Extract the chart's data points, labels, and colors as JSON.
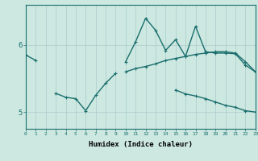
{
  "xlabel": "Humidex (Indice chaleur)",
  "background_color": "#cce8e0",
  "grid_color": "#aacccc",
  "line_color": "#1a6e6e",
  "x_values": [
    0,
    1,
    2,
    3,
    4,
    5,
    6,
    7,
    8,
    9,
    10,
    11,
    12,
    13,
    14,
    15,
    16,
    17,
    18,
    19,
    20,
    21,
    22,
    23
  ],
  "line1_y": [
    5.85,
    5.77,
    null,
    null,
    null,
    null,
    null,
    null,
    null,
    null,
    5.6,
    5.65,
    5.68,
    5.72,
    5.77,
    5.8,
    5.83,
    5.86,
    5.88,
    5.9,
    5.9,
    5.88,
    5.75,
    5.6
  ],
  "line2_y": [
    null,
    null,
    null,
    5.28,
    5.22,
    5.2,
    5.02,
    5.25,
    5.43,
    5.58,
    null,
    null,
    null,
    null,
    null,
    5.33,
    5.27,
    5.24,
    5.2,
    5.15,
    5.1,
    5.07,
    5.02,
    5.0
  ],
  "line3_y": [
    null,
    null,
    null,
    null,
    null,
    null,
    null,
    null,
    null,
    null,
    5.75,
    6.05,
    6.4,
    6.22,
    5.92,
    6.08,
    5.83,
    6.28,
    5.9,
    5.88,
    5.88,
    5.87,
    5.7,
    5.6
  ],
  "ylim": [
    4.75,
    6.6
  ],
  "yticks": [
    5.0,
    6.0
  ],
  "ytick_labels": [
    "5",
    "6"
  ],
  "xlim": [
    0,
    23
  ]
}
